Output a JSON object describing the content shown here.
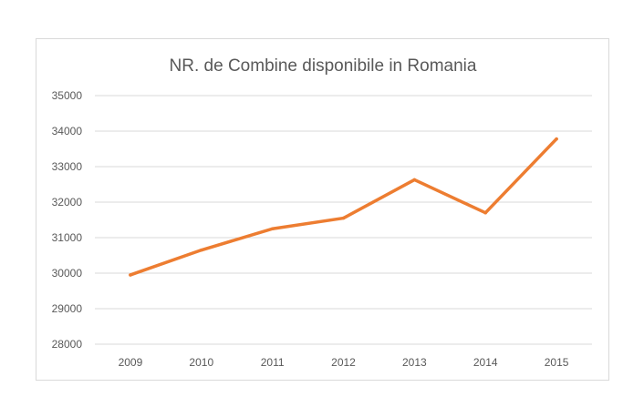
{
  "chart_data": {
    "type": "line",
    "title": "NR. de Combine disponibile in Romania",
    "xlabel": "",
    "ylabel": "",
    "categories": [
      "2009",
      "2010",
      "2011",
      "2012",
      "2013",
      "2014",
      "2015"
    ],
    "series": [
      {
        "values": [
          29950,
          30650,
          31250,
          31550,
          32630,
          31700,
          33780
        ]
      }
    ],
    "ylim": [
      28000,
      35000
    ],
    "yticks": [
      "28000",
      "29000",
      "30000",
      "31000",
      "32000",
      "33000",
      "34000",
      "35000"
    ],
    "grid": true,
    "legend": "none",
    "colors": {
      "line": "#ed7d31",
      "grid": "#d9d9d9",
      "text": "#595959"
    }
  }
}
